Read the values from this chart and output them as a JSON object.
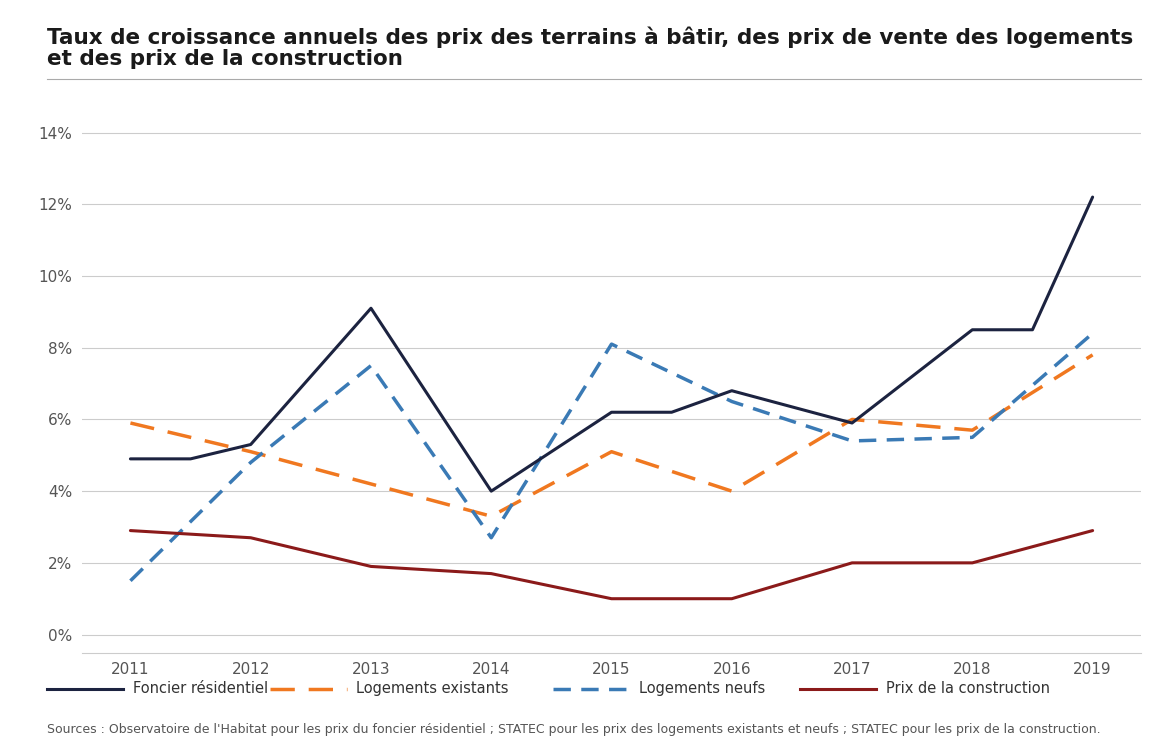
{
  "title_line1": "Taux de croissance annuels des prix des terrains à bâtir, des prix de vente des logements",
  "title_line2": "et des prix de la construction",
  "source": "Sources : Observatoire de l'Habitat pour les prix du foncier résidentiel ; STATEC pour les prix des logements existants et neufs ; STATEC pour les prix de la construction.",
  "foncier": {
    "label": "Foncier résidentiel",
    "color": "#1c2340",
    "x": [
      2011,
      2011.5,
      2012,
      2013,
      2014,
      2015,
      2015.5,
      2016,
      2017,
      2018,
      2018.5,
      2019
    ],
    "y": [
      0.049,
      0.049,
      0.053,
      0.091,
      0.04,
      0.062,
      0.062,
      0.068,
      0.059,
      0.085,
      0.085,
      0.122
    ],
    "linestyle": "solid",
    "linewidth": 2.2
  },
  "existants": {
    "label": "Logements existants",
    "color": "#f07820",
    "x": [
      2011,
      2012,
      2013,
      2014,
      2015,
      2016,
      2017,
      2018,
      2019
    ],
    "y": [
      0.059,
      0.051,
      0.042,
      0.033,
      0.051,
      0.04,
      0.06,
      0.057,
      0.078
    ],
    "linestyle": "dashed",
    "linewidth": 2.5
  },
  "neufs": {
    "label": "Logements neufs",
    "color": "#3a7ab5",
    "x": [
      2011,
      2012,
      2013,
      2014,
      2015,
      2016,
      2017,
      2018,
      2019
    ],
    "y": [
      0.015,
      0.048,
      0.075,
      0.027,
      0.081,
      0.065,
      0.054,
      0.055,
      0.084
    ],
    "linestyle": "dashed",
    "linewidth": 2.5
  },
  "construction": {
    "label": "Prix de la construction",
    "color": "#8b1a1a",
    "x": [
      2011,
      2012,
      2013,
      2014,
      2015,
      2016,
      2017,
      2018,
      2019
    ],
    "y": [
      0.029,
      0.027,
      0.019,
      0.017,
      0.01,
      0.01,
      0.02,
      0.02,
      0.029
    ],
    "linestyle": "solid",
    "linewidth": 2.2
  },
  "ylim": [
    -0.005,
    0.155
  ],
  "yticks": [
    0.0,
    0.02,
    0.04,
    0.06,
    0.08,
    0.1,
    0.12,
    0.14
  ],
  "xticks": [
    2011,
    2012,
    2013,
    2014,
    2015,
    2016,
    2017,
    2018,
    2019
  ],
  "background_color": "#ffffff",
  "grid_color": "#cccccc",
  "title_fontsize": 15.5,
  "axis_fontsize": 11,
  "legend_fontsize": 10.5,
  "source_fontsize": 9
}
